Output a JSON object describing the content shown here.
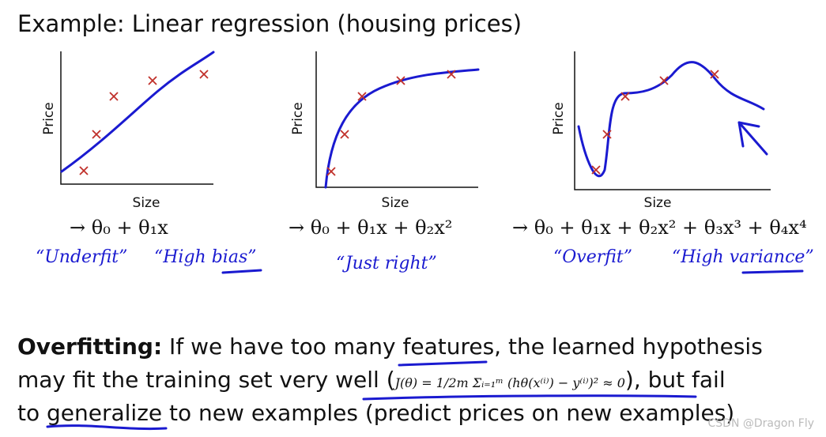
{
  "title": "Example: Linear regression (housing prices)",
  "panels": [
    {
      "y_label": "Price",
      "x_label": "Size",
      "hypothesis": "→ θ₀ + θ₁x",
      "notes": [
        "“Underfit”",
        "“High bias”"
      ]
    },
    {
      "y_label": "Price",
      "x_label": "Size",
      "hypothesis": "→ θ₀ + θ₁x + θ₂x²",
      "notes": [
        "“Just right”"
      ]
    },
    {
      "y_label": "Price",
      "x_label": "Size",
      "hypothesis": "→ θ₀ + θ₁x + θ₂x² + θ₃x³ + θ₄x⁴",
      "notes": [
        "“Overfit”",
        "“High variance”"
      ]
    }
  ],
  "body": {
    "lead": "Overfitting:",
    "line1": " If we have too many features, the learned hypothesis",
    "line2a": "may fit the training set very well (",
    "cost": "J(θ) = 1/2m Σᵢ₌₁ᵐ (hθ(x⁽ⁱ⁾) − y⁽ⁱ⁾)² ≈ 0",
    "line2b": "), but fail",
    "line3": "to generalize to new examples (predict prices on new examples)"
  },
  "watermark": "CSDN @Dragon Fly"
}
